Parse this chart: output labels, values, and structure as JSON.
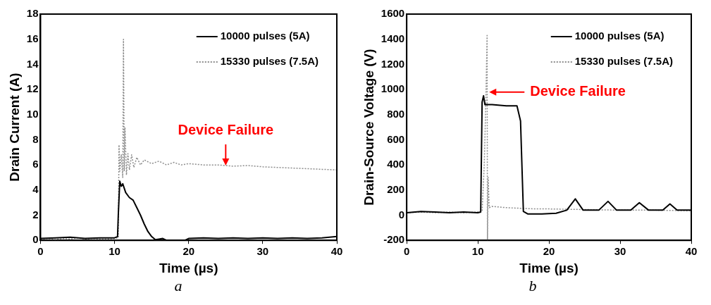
{
  "chart_data": [
    {
      "type": "line",
      "xlabel": "Time (µs)",
      "ylabel": "Drain Current (A)",
      "xlim": [
        0,
        40
      ],
      "xticks": [
        0,
        10,
        20,
        30,
        40
      ],
      "ylim": [
        0,
        18
      ],
      "yticks": [
        0,
        2,
        4,
        6,
        8,
        10,
        12,
        14,
        16,
        18
      ],
      "legend": "top right",
      "marker": "none",
      "annotations": [
        {
          "text": "Device Failure",
          "x": 25,
          "y": 5.95
        },
        "a"
      ],
      "series": [
        {
          "name": "10000 pulses (5A)",
          "color": "#000000",
          "line_style": "solid",
          "x": [
            0,
            2,
            4,
            6,
            8,
            10,
            10.4,
            10.5,
            10.7,
            10.9,
            11.1,
            11.5,
            12,
            12.5,
            13,
            13.5,
            14,
            14.5,
            15,
            15.5,
            16,
            16.5,
            17,
            19.5,
            20,
            22,
            24,
            26,
            28,
            30,
            32,
            34,
            36,
            38,
            40
          ],
          "values": [
            0.15,
            0.2,
            0.25,
            0.15,
            0.2,
            0.2,
            0.3,
            2.0,
            4.7,
            4.3,
            4.5,
            3.8,
            3.4,
            3.2,
            2.6,
            2.0,
            1.3,
            0.7,
            0.3,
            0.05,
            0.1,
            0.15,
            0,
            0,
            0.15,
            0.2,
            0.15,
            0.2,
            0.15,
            0.2,
            0.15,
            0.2,
            0.15,
            0.2,
            0.3
          ]
        },
        {
          "name": "15330 pulses (7.5A)",
          "color": "#8c8c8c",
          "line_style": "dotted",
          "x": [
            0,
            1,
            2,
            3,
            4,
            5,
            6,
            7,
            8,
            9,
            10,
            10.5,
            10.6,
            10.7,
            10.9,
            11.1,
            11.2,
            11.3,
            11.4,
            11.6,
            11.8,
            12,
            12.3,
            12.6,
            13,
            13.5,
            14,
            15,
            16,
            17,
            18,
            19,
            20,
            22,
            24,
            25,
            26,
            28,
            30,
            32,
            34,
            36,
            38,
            40
          ],
          "values": [
            0.1,
            0.15,
            0.05,
            0.15,
            0.1,
            0.2,
            0.1,
            0.15,
            0.1,
            0.1,
            0.15,
            0.2,
            7.6,
            5.5,
            6.8,
            5.0,
            16.0,
            5.5,
            9.0,
            5.2,
            6.9,
            5.6,
            6.8,
            5.8,
            6.6,
            6.0,
            6.4,
            6.1,
            6.3,
            6.0,
            6.2,
            6.0,
            6.1,
            6.0,
            6.0,
            5.95,
            5.9,
            5.95,
            5.85,
            5.8,
            5.75,
            5.7,
            5.65,
            5.6
          ]
        }
      ]
    },
    {
      "type": "line",
      "xlabel": "Time (µs)",
      "ylabel": "Drain-Source Voltage (V)",
      "xlim": [
        0,
        40
      ],
      "xticks": [
        0,
        10,
        20,
        30,
        40
      ],
      "ylim": [
        -200,
        1600
      ],
      "yticks": [
        -200,
        0,
        200,
        400,
        600,
        800,
        1000,
        1200,
        1400,
        1600
      ],
      "legend": "top right",
      "marker": "none",
      "annotations": [
        {
          "text": "Device Failure",
          "x": 11.6,
          "y": 980
        },
        "b"
      ],
      "series": [
        {
          "name": "10000 pulses (5A)",
          "color": "#000000",
          "line_style": "solid",
          "x": [
            0,
            2,
            4,
            6,
            8,
            10,
            10.4,
            10.6,
            10.8,
            11,
            12,
            14,
            15.5,
            16,
            16.4,
            17,
            19,
            21,
            22.5,
            23.7,
            24.8,
            27,
            28.3,
            29.5,
            31.5,
            32.7,
            34,
            36,
            37,
            38,
            40
          ],
          "values": [
            20,
            30,
            25,
            20,
            25,
            20,
            25,
            900,
            950,
            880,
            880,
            870,
            870,
            750,
            30,
            10,
            10,
            15,
            40,
            130,
            40,
            40,
            110,
            40,
            40,
            100,
            40,
            40,
            90,
            40,
            40
          ]
        },
        {
          "name": "15330 pulses (7.5A)",
          "color": "#8c8c8c",
          "line_style": "dotted",
          "x": [
            0,
            2,
            4,
            6,
            8,
            10,
            10.6,
            10.9,
            11.1,
            11.3,
            11.35,
            11.45,
            11.6,
            12,
            14,
            16,
            18,
            20,
            25,
            30,
            35,
            40
          ],
          "values": [
            20,
            25,
            20,
            25,
            20,
            25,
            30,
            400,
            850,
            1430,
            -200,
            300,
            60,
            70,
            60,
            55,
            50,
            50,
            45,
            40,
            40,
            35
          ]
        }
      ]
    }
  ]
}
